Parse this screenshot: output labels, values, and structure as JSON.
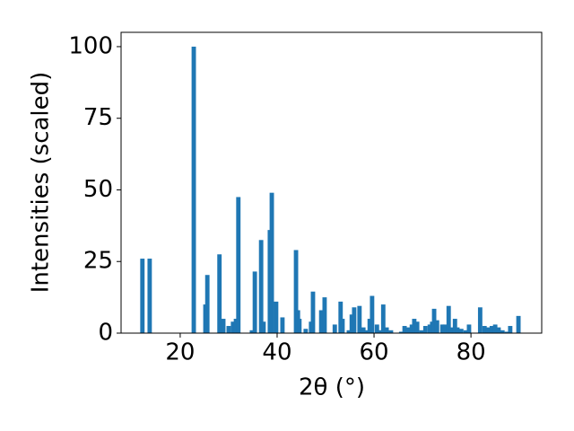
{
  "chart_data": {
    "type": "bar",
    "xlabel": "2θ (°)",
    "ylabel": "Intensities (scaled)",
    "x": [
      12.2,
      13.7,
      22.8,
      25.2,
      25.6,
      28.1,
      28.9,
      30,
      30.9,
      31.5,
      32,
      34.8,
      35.4,
      36.7,
      37.2,
      38.5,
      38.9,
      39.8,
      41.1,
      43.9,
      44.3,
      44.6,
      45.9,
      47,
      47.4,
      49.1,
      49.8,
      51.9,
      53.1,
      53.5,
      54.8,
      55.4,
      55.9,
      57,
      57.8,
      58.5,
      59.1,
      59.6,
      60.6,
      61.3,
      61.9,
      62.6,
      63.5,
      65.6,
      66.3,
      67,
      67.8,
      68.3,
      68.9,
      69.8,
      70.6,
      71.5,
      72,
      72.4,
      73,
      74.1,
      74.6,
      75.4,
      75.9,
      76.7,
      77.2,
      78,
      78.9,
      79.6,
      81.9,
      82.8,
      83.5,
      84.3,
      85,
      85.7,
      86.5,
      87.4,
      88.1,
      89.8
    ],
    "values": [
      26,
      26,
      100,
      10,
      20.3,
      27.5,
      5,
      2.5,
      4,
      5,
      47.5,
      1,
      21.5,
      32.5,
      4,
      36,
      49,
      11,
      5.5,
      29,
      8,
      5,
      1.5,
      4,
      14.5,
      8,
      12.5,
      3,
      11,
      5,
      1,
      6.5,
      9,
      9.5,
      2,
      1,
      5,
      13,
      3,
      1,
      10,
      2,
      1,
      0.5,
      2.5,
      2,
      3,
      5,
      4,
      1,
      2.5,
      3,
      4,
      8.5,
      4.5,
      3,
      3,
      9.5,
      2,
      5,
      2,
      1.5,
      1,
      3,
      9,
      2.5,
      2,
      2.5,
      3,
      2,
      1,
      0.5,
      2.5,
      6
    ],
    "color": "#1f77b4",
    "xlim": [
      7.8,
      94.6
    ],
    "xticks": [
      20,
      40,
      60,
      80
    ],
    "ylim": [
      0,
      105
    ],
    "yticks": [
      0,
      25,
      50,
      75,
      100
    ]
  }
}
